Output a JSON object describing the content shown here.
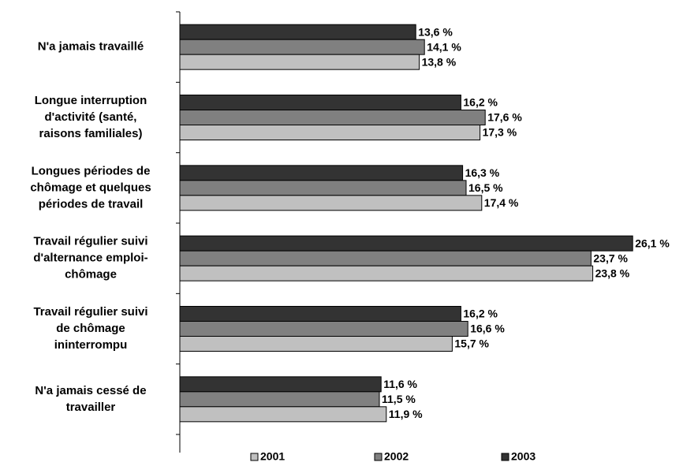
{
  "chart_data": {
    "type": "bar",
    "orientation": "horizontal",
    "categories": [
      "N'a jamais travaillé",
      "Longue interruption\nd'activité (santé,\nraisons familiales)",
      "Longues périodes de\nchômage et quelques\npériodes de travail",
      "Travail régulier suivi\nd'alternance emploi-\nchômage",
      "Travail régulier suivi\nde chômage\nininterrompu",
      "N'a jamais cessé de\ntravailler"
    ],
    "series": [
      {
        "name": "2001",
        "color": "#c0c0c0",
        "values": [
          13.8,
          17.3,
          17.4,
          23.8,
          15.7,
          11.9
        ],
        "value_labels": [
          "13,8 %",
          "17,3 %",
          "17,4 %",
          "23,8 %",
          "15,7 %",
          "11,9 %"
        ]
      },
      {
        "name": "2002",
        "color": "#808080",
        "values": [
          14.1,
          17.6,
          16.5,
          23.7,
          16.6,
          11.5
        ],
        "value_labels": [
          "14,1 %",
          "17,6 %",
          "16,5 %",
          "23,7 %",
          "16,6 %",
          "11,5 %"
        ]
      },
      {
        "name": "2003",
        "color": "#333333",
        "values": [
          13.6,
          16.2,
          16.3,
          26.1,
          16.2,
          11.6
        ],
        "value_labels": [
          "13,6 %",
          "16,2 %",
          "16,3 %",
          "26,1 %",
          "16,2 %",
          "11,6 %"
        ]
      }
    ],
    "xlim": [
      0,
      29
    ],
    "legend": "bottom"
  }
}
